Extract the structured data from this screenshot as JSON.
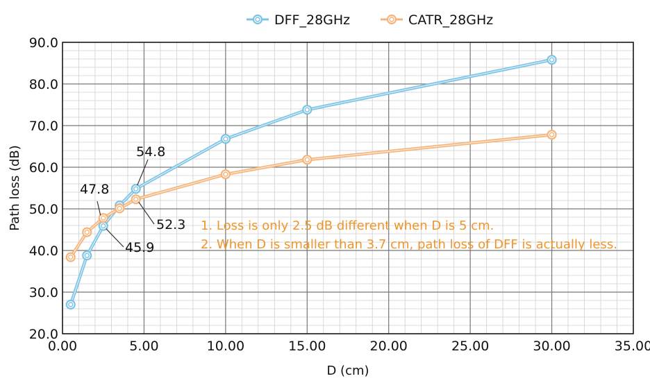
{
  "chart_data": {
    "type": "line",
    "xlabel": "D (cm)",
    "ylabel": "Path loss (dB)",
    "xlim": [
      0,
      35
    ],
    "ylim": [
      20,
      90
    ],
    "x_ticks": [
      "0.00",
      "5.00",
      "10.00",
      "15.00",
      "20.00",
      "25.00",
      "30.00",
      "35.00"
    ],
    "y_ticks": [
      "20.0",
      "30.0",
      "40.0",
      "50.0",
      "60.0",
      "70.0",
      "80.0",
      "90.0"
    ],
    "grid": true,
    "legend_position": "top",
    "series": [
      {
        "name": "DFF_28GHz",
        "color": "#7cc3e6",
        "points": [
          [
            0.5,
            27.0
          ],
          [
            1.5,
            38.8
          ],
          [
            2.5,
            45.9
          ],
          [
            3.5,
            50.8
          ],
          [
            4.5,
            54.8
          ],
          [
            10.0,
            66.8
          ],
          [
            15.0,
            73.8
          ],
          [
            30.0,
            85.8
          ]
        ]
      },
      {
        "name": "CATR_28GHz",
        "color": "#f5b47a",
        "points": [
          [
            0.5,
            38.4
          ],
          [
            1.5,
            44.4
          ],
          [
            2.5,
            47.8
          ],
          [
            3.5,
            50.1
          ],
          [
            4.5,
            52.3
          ],
          [
            10.0,
            58.3
          ],
          [
            15.0,
            61.8
          ],
          [
            30.0,
            67.8
          ]
        ]
      }
    ],
    "annotations": [
      {
        "text": "54.8",
        "x": 4.5,
        "y": 54.8
      },
      {
        "text": "47.8",
        "x": 2.5,
        "y": 47.8
      },
      {
        "text": "52.3",
        "x": 4.5,
        "y": 52.3
      },
      {
        "text": "45.9",
        "x": 2.5,
        "y": 45.9
      }
    ],
    "notes": [
      "1. Loss is only 2.5 dB different when D is 5 cm.",
      "2. When D is smaller than 3.7 cm, path loss of DFF is actually less."
    ]
  }
}
